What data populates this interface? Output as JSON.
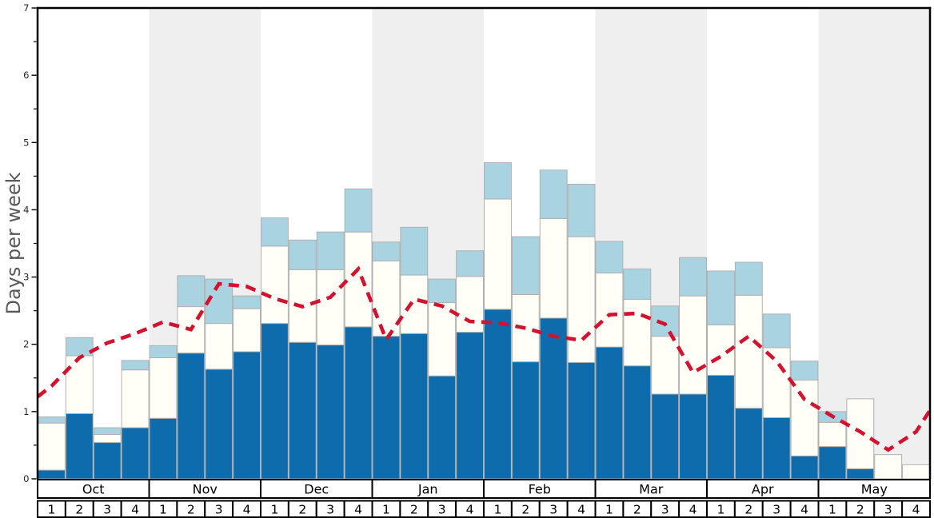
{
  "chart_data": {
    "type": "bar",
    "stacked": true,
    "title": "",
    "ylabel": "Days per week",
    "ylim": [
      0,
      7
    ],
    "yticks": [
      0,
      1,
      2,
      3,
      4,
      5,
      6,
      7
    ],
    "minor_tick_step": 0.5,
    "grid": false,
    "legend_position": "none",
    "months": [
      "Oct",
      "Nov",
      "Dec",
      "Jan",
      "Feb",
      "Mar",
      "Apr",
      "May"
    ],
    "week_labels": [
      "1",
      "2",
      "3",
      "4"
    ],
    "categories": [
      "Oct W1",
      "Oct W2",
      "Oct W3",
      "Oct W4",
      "Nov W1",
      "Nov W2",
      "Nov W3",
      "Nov W4",
      "Dec W1",
      "Dec W2",
      "Dec W3",
      "Dec W4",
      "Jan W1",
      "Jan W2",
      "Jan W3",
      "Jan W4",
      "Feb W1",
      "Feb W2",
      "Feb W3",
      "Feb W4",
      "Mar W1",
      "Mar W2",
      "Mar W3",
      "Mar W4",
      "Apr W1",
      "Apr W2",
      "Apr W3",
      "Apr W4",
      "May W1",
      "May W2",
      "May W3",
      "May W4"
    ],
    "series": [
      {
        "name": "dark-blue-segment",
        "color": "#0e6cac",
        "cumulative_top": [
          0.13,
          0.97,
          0.54,
          0.76,
          0.9,
          1.87,
          1.63,
          1.89,
          2.31,
          2.03,
          1.99,
          2.26,
          2.12,
          2.16,
          1.53,
          2.18,
          2.52,
          1.74,
          2.39,
          1.73,
          1.96,
          1.68,
          1.26,
          1.26,
          1.54,
          1.05,
          0.91,
          0.34,
          0.48,
          0.15,
          0.0,
          0.0
        ]
      },
      {
        "name": "white-segment",
        "color": "#fffff8",
        "cumulative_top": [
          0.83,
          1.83,
          0.66,
          1.62,
          1.8,
          2.56,
          2.31,
          2.53,
          3.46,
          3.11,
          3.11,
          3.67,
          3.24,
          3.03,
          2.62,
          3.01,
          4.16,
          2.74,
          3.87,
          3.6,
          3.06,
          2.67,
          2.12,
          2.72,
          2.29,
          2.73,
          1.95,
          1.47,
          0.84,
          1.19,
          0.36,
          0.21
        ]
      },
      {
        "name": "light-blue-segment",
        "color": "#aad3e2",
        "cumulative_top": [
          0.92,
          2.1,
          0.76,
          1.76,
          1.98,
          3.02,
          2.97,
          2.72,
          3.88,
          3.55,
          3.67,
          4.31,
          3.52,
          3.74,
          2.97,
          3.39,
          4.7,
          3.6,
          4.59,
          4.38,
          3.53,
          3.12,
          2.57,
          3.29,
          3.09,
          3.22,
          2.45,
          1.75,
          1.0,
          1.19,
          0.36,
          0.21
        ]
      }
    ],
    "line_series": {
      "name": "red-dashed-average-line",
      "color": "#d2122e",
      "style": "dashed",
      "dash_pattern": [
        13,
        8.5
      ],
      "width": 4.6,
      "edge_start_value": 1.22,
      "edge_end_value": 1.02,
      "values": [
        1.38,
        1.8,
        2.02,
        2.16,
        2.33,
        2.22,
        2.9,
        2.86,
        2.68,
        2.56,
        2.7,
        3.12,
        2.07,
        2.67,
        2.57,
        2.34,
        2.32,
        2.24,
        2.12,
        2.06,
        2.44,
        2.46,
        2.3,
        1.58,
        1.82,
        2.12,
        1.75,
        1.18,
        0.93,
        0.7,
        0.43,
        0.7
      ]
    },
    "band_colors": {
      "even_month": "#ffffff",
      "odd_month": "#efefef"
    },
    "bar_border_color": "#b0b0b0",
    "axis_color": "#000000",
    "table_border_color": "#000000",
    "table_fill_color": "#ffffff",
    "ylabel_color": "#595959",
    "tick_label_color": "#262626"
  }
}
